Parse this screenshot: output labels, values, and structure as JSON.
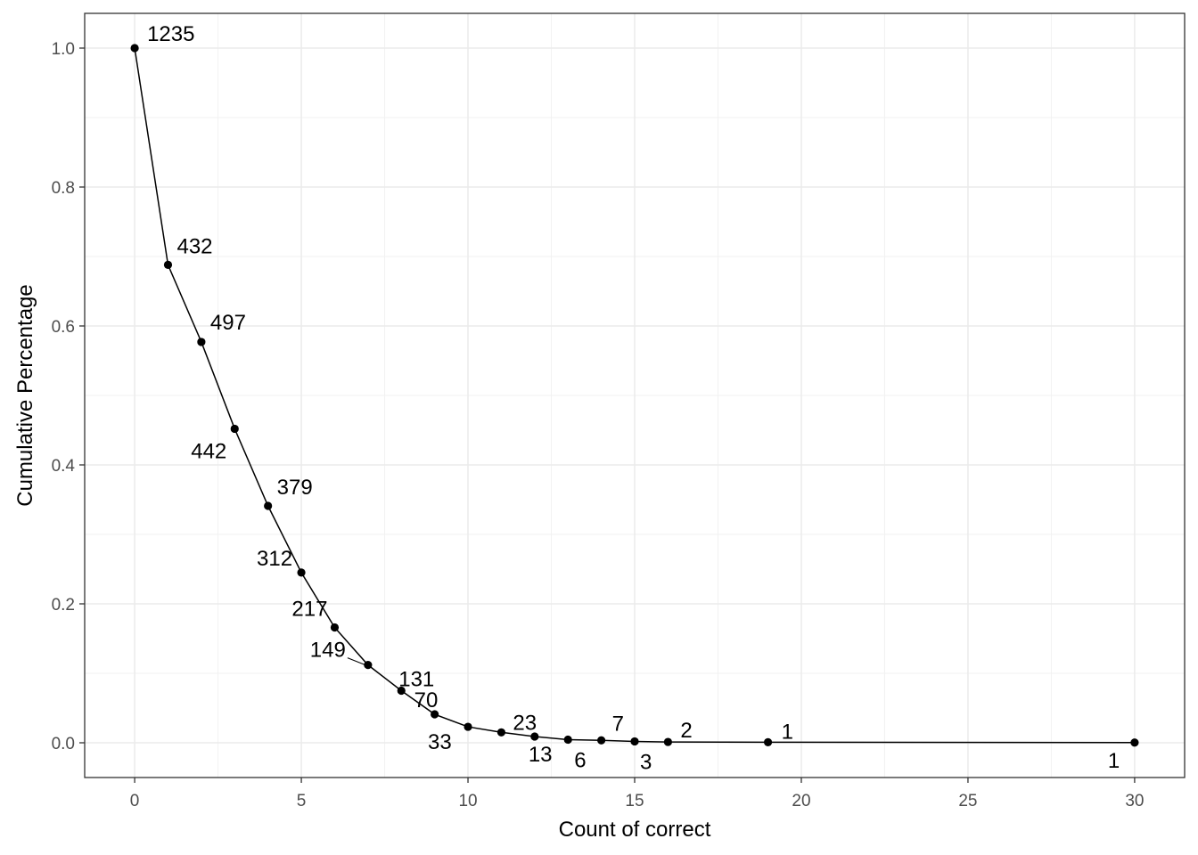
{
  "chart_data": {
    "type": "line",
    "title": "",
    "xlabel": "Count of correct",
    "ylabel": "Cumulative Percentage",
    "xlim": [
      -1.5,
      31.5
    ],
    "ylim": [
      -0.05,
      1.05
    ],
    "x_ticks": [
      0,
      5,
      10,
      15,
      20,
      25,
      30
    ],
    "x_tick_labels": [
      "0",
      "5",
      "10",
      "15",
      "20",
      "25",
      "30"
    ],
    "y_ticks": [
      0.0,
      0.2,
      0.4,
      0.6,
      0.8,
      1.0
    ],
    "y_tick_labels": [
      "0.0",
      "0.2",
      "0.4",
      "0.6",
      "0.8",
      "1.0"
    ],
    "grid": true,
    "series": [
      {
        "x": [
          0,
          1,
          2,
          3,
          4,
          5,
          6,
          7,
          8,
          9,
          10,
          11,
          12,
          13,
          14,
          15,
          16,
          19,
          30
        ],
        "y": [
          1.0,
          0.688,
          0.577,
          0.452,
          0.341,
          0.245,
          0.166,
          0.112,
          0.075,
          0.041,
          0.023,
          0.015,
          0.009,
          0.0045,
          0.0035,
          0.002,
          0.0012,
          0.0008,
          0.0003
        ],
        "labels": [
          "1235",
          "432",
          "497",
          "442",
          "379",
          "312",
          "217",
          "149",
          "131",
          "70",
          "33",
          "23",
          "13",
          "6",
          "7",
          "3",
          "2",
          "1",
          "1"
        ]
      }
    ]
  }
}
